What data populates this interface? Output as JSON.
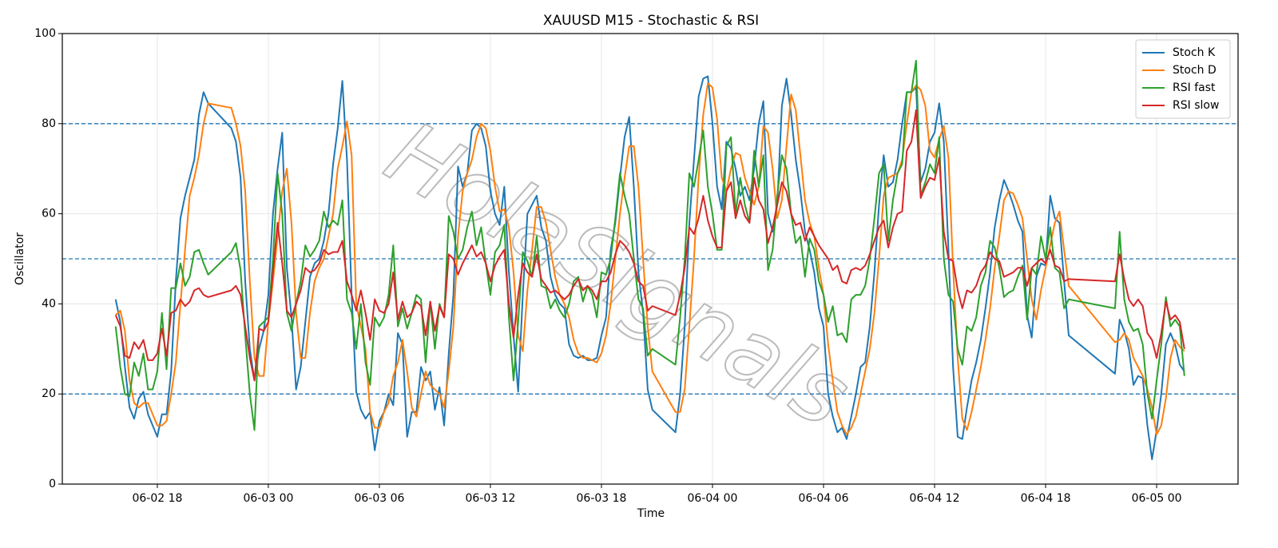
{
  "chart_data": {
    "type": "line",
    "title": "XAUUSD M15 - Stochastic & RSI",
    "xlabel": "Time",
    "ylabel": "Oscillator",
    "watermark": "HolaSignals",
    "grid": true,
    "legend": "upper right",
    "hlines": [
      20,
      50,
      80
    ],
    "hline_color": "#1f77b4",
    "ylim": [
      0,
      100
    ],
    "yticks": [
      0,
      20,
      40,
      60,
      80,
      100
    ],
    "xlim": [
      "06-02 12:52",
      "06-05 04:24"
    ],
    "xticks": [
      {
        "value": "06-02 18:00",
        "label": "06-02 18"
      },
      {
        "value": "06-03 00:00",
        "label": "06-03 00"
      },
      {
        "value": "06-03 06:00",
        "label": "06-03 06"
      },
      {
        "value": "06-03 12:00",
        "label": "06-03 12"
      },
      {
        "value": "06-03 18:00",
        "label": "06-03 18"
      },
      {
        "value": "06-04 00:00",
        "label": "06-04 00"
      },
      {
        "value": "06-04 06:00",
        "label": "06-04 06"
      },
      {
        "value": "06-04 12:00",
        "label": "06-04 12"
      },
      {
        "value": "06-04 18:00",
        "label": "06-04 18"
      },
      {
        "value": "06-05 00:00",
        "label": "06-05 00"
      }
    ],
    "x": [
      "06-02 15:45",
      "06-02 16:00",
      "06-02 16:15",
      "06-02 16:30",
      "06-02 16:45",
      "06-02 17:00",
      "06-02 17:15",
      "06-02 17:30",
      "06-02 17:45",
      "06-02 18:00",
      "06-02 18:15",
      "06-02 18:30",
      "06-02 18:45",
      "06-02 19:00",
      "06-02 19:15",
      "06-02 19:30",
      "06-02 19:45",
      "06-02 20:00",
      "06-02 20:15",
      "06-02 20:30",
      "06-02 20:45",
      "06-02 22:00",
      "06-02 22:15",
      "06-02 22:30",
      "06-02 22:45",
      "06-02 23:00",
      "06-02 23:15",
      "06-02 23:30",
      "06-02 23:45",
      "06-03 00:00",
      "06-03 00:15",
      "06-03 00:30",
      "06-03 00:45",
      "06-03 01:00",
      "06-03 01:15",
      "06-03 01:30",
      "06-03 01:45",
      "06-03 02:00",
      "06-03 02:15",
      "06-03 02:30",
      "06-03 02:45",
      "06-03 03:00",
      "06-03 03:15",
      "06-03 03:30",
      "06-03 03:45",
      "06-03 04:00",
      "06-03 04:15",
      "06-03 04:30",
      "06-03 04:45",
      "06-03 05:00",
      "06-03 05:15",
      "06-03 05:30",
      "06-03 05:45",
      "06-03 06:00",
      "06-03 06:15",
      "06-03 06:30",
      "06-03 06:45",
      "06-03 07:00",
      "06-03 07:15",
      "06-03 07:30",
      "06-03 07:45",
      "06-03 08:00",
      "06-03 08:15",
      "06-03 08:30",
      "06-03 08:45",
      "06-03 09:00",
      "06-03 09:15",
      "06-03 09:30",
      "06-03 09:45",
      "06-03 10:00",
      "06-03 10:15",
      "06-03 10:30",
      "06-03 10:45",
      "06-03 11:00",
      "06-03 11:15",
      "06-03 11:30",
      "06-03 11:45",
      "06-03 12:00",
      "06-03 12:15",
      "06-03 12:30",
      "06-03 12:45",
      "06-03 13:00",
      "06-03 13:15",
      "06-03 13:30",
      "06-03 13:45",
      "06-03 14:00",
      "06-03 14:15",
      "06-03 14:30",
      "06-03 14:45",
      "06-03 15:00",
      "06-03 15:15",
      "06-03 15:30",
      "06-03 15:45",
      "06-03 16:00",
      "06-03 16:15",
      "06-03 16:30",
      "06-03 16:45",
      "06-03 17:00",
      "06-03 17:15",
      "06-03 17:30",
      "06-03 17:45",
      "06-03 18:00",
      "06-03 18:15",
      "06-03 18:30",
      "06-03 18:45",
      "06-03 19:00",
      "06-03 19:15",
      "06-03 19:30",
      "06-03 19:45",
      "06-03 20:00",
      "06-03 20:15",
      "06-03 20:30",
      "06-03 20:45",
      "06-03 22:00",
      "06-03 22:15",
      "06-03 22:30",
      "06-03 22:45",
      "06-03 23:00",
      "06-03 23:15",
      "06-03 23:30",
      "06-03 23:45",
      "06-04 00:00",
      "06-04 00:15",
      "06-04 00:30",
      "06-04 00:45",
      "06-04 01:00",
      "06-04 01:15",
      "06-04 01:30",
      "06-04 01:45",
      "06-04 02:00",
      "06-04 02:15",
      "06-04 02:30",
      "06-04 02:45",
      "06-04 03:00",
      "06-04 03:15",
      "06-04 03:30",
      "06-04 03:45",
      "06-04 04:00",
      "06-04 04:15",
      "06-04 04:30",
      "06-04 04:45",
      "06-04 05:00",
      "06-04 05:15",
      "06-04 05:30",
      "06-04 05:45",
      "06-04 06:00",
      "06-04 06:15",
      "06-04 06:30",
      "06-04 06:45",
      "06-04 07:00",
      "06-04 07:15",
      "06-04 07:30",
      "06-04 07:45",
      "06-04 08:00",
      "06-04 08:15",
      "06-04 08:30",
      "06-04 08:45",
      "06-04 09:00",
      "06-04 09:15",
      "06-04 09:30",
      "06-04 09:45",
      "06-04 10:00",
      "06-04 10:15",
      "06-04 10:30",
      "06-04 10:45",
      "06-04 11:00",
      "06-04 11:15",
      "06-04 11:30",
      "06-04 11:45",
      "06-04 12:00",
      "06-04 12:15",
      "06-04 12:30",
      "06-04 12:45",
      "06-04 13:00",
      "06-04 13:15",
      "06-04 13:30",
      "06-04 13:45",
      "06-04 14:00",
      "06-04 14:15",
      "06-04 14:30",
      "06-04 14:45",
      "06-04 15:00",
      "06-04 15:15",
      "06-04 15:30",
      "06-04 15:45",
      "06-04 16:00",
      "06-04 16:15",
      "06-04 16:30",
      "06-04 16:45",
      "06-04 17:00",
      "06-04 17:15",
      "06-04 17:30",
      "06-04 17:45",
      "06-04 18:00",
      "06-04 18:15",
      "06-04 18:30",
      "06-04 18:45",
      "06-04 19:00",
      "06-04 19:15",
      "06-04 21:45",
      "06-04 22:00",
      "06-04 22:15",
      "06-04 22:30",
      "06-04 22:45",
      "06-04 23:00",
      "06-04 23:15",
      "06-04 23:30",
      "06-04 23:45",
      "06-05 00:00",
      "06-05 00:15",
      "06-05 00:30",
      "06-05 00:45",
      "06-05 01:00",
      "06-05 01:15",
      "06-05 01:30"
    ],
    "series": [
      {
        "name": "Stoch K",
        "color": "#1f77b4",
        "values": [
          41,
          36,
          26,
          17,
          14.5,
          19,
          20.5,
          15.5,
          13,
          10.5,
          15.5,
          15.5,
          25,
          45,
          59,
          64,
          68,
          72,
          82,
          87,
          84.5,
          79,
          76,
          68,
          45,
          30,
          23,
          30,
          34,
          42,
          60,
          70,
          78,
          48,
          37,
          21,
          26,
          36,
          46,
          49,
          50,
          54,
          60,
          71,
          79,
          89.5,
          72,
          42,
          20.5,
          16.5,
          14.5,
          16,
          7.5,
          14,
          16,
          20,
          17.5,
          33.5,
          31,
          10.5,
          16,
          16,
          26,
          23,
          25,
          16.5,
          21.5,
          13,
          29,
          42,
          70.5,
          66,
          69,
          78.5,
          80,
          79,
          75,
          65,
          60,
          57.5,
          66,
          47,
          33,
          20.5,
          42,
          60,
          62,
          64,
          57,
          54,
          46,
          42,
          40,
          39,
          31,
          28.5,
          28,
          28.5,
          27.5,
          27.5,
          28,
          33,
          37,
          52,
          58,
          68,
          77,
          81.5,
          66,
          47,
          38,
          21,
          16.5,
          11.5,
          20,
          35,
          58,
          72,
          86,
          90,
          90.5,
          80,
          66,
          61,
          76,
          74.5,
          70,
          64,
          66,
          63,
          70,
          80,
          85,
          60,
          56,
          62,
          84,
          90,
          82,
          72,
          65,
          56,
          52,
          47,
          39,
          35,
          20,
          15,
          11.5,
          12.5,
          10,
          15,
          20,
          26,
          27,
          35,
          47,
          62,
          73,
          66,
          67,
          72,
          80,
          87,
          87,
          88,
          67,
          70,
          76,
          78,
          84.5,
          76,
          52,
          26,
          10.5,
          10,
          17,
          23,
          27,
          32,
          39,
          47,
          57,
          63,
          67.5,
          65,
          62,
          58.5,
          56,
          37.5,
          32.5,
          46,
          49,
          48.5,
          64,
          59,
          58,
          45,
          33,
          24.5,
          36.5,
          34,
          30,
          22,
          24,
          23.5,
          13,
          5.5,
          12,
          20,
          31,
          33.5,
          31,
          26.5,
          25
        ]
      },
      {
        "name": "Stoch D",
        "color": "#ff7f0e",
        "values": [
          37.5,
          38.5,
          34,
          23,
          18,
          17,
          18,
          18,
          15.5,
          13,
          13,
          14,
          20,
          27,
          40,
          52,
          64,
          68,
          73,
          80,
          84.5,
          83.5,
          80,
          75,
          65,
          45,
          28,
          24,
          24,
          36,
          45,
          55,
          65,
          70,
          58,
          38,
          28,
          28,
          38,
          45,
          48,
          50,
          55,
          60,
          70,
          75,
          80.5,
          73,
          40,
          35,
          30,
          16,
          12.5,
          12.5,
          16,
          18,
          24,
          27,
          32,
          25,
          17,
          15,
          20,
          25,
          22,
          21,
          20,
          17,
          25,
          35,
          55,
          65,
          69,
          72,
          77,
          80,
          79,
          74,
          66,
          60.5,
          61,
          57,
          47,
          33,
          29.5,
          43,
          52,
          61.5,
          61.5,
          58,
          52,
          46,
          42,
          40,
          37,
          32,
          29,
          28,
          28,
          27.5,
          27,
          29,
          33,
          40,
          50,
          60,
          68,
          75,
          75,
          66,
          50,
          35,
          25,
          16,
          16,
          21,
          35,
          50,
          68,
          82,
          89,
          88,
          81,
          68,
          65,
          70,
          73.5,
          73,
          68,
          65,
          62,
          66,
          79.5,
          78,
          70,
          59,
          63,
          75,
          86.5,
          83,
          73,
          63,
          58,
          55,
          48,
          42,
          31,
          23,
          16,
          13,
          11,
          12.5,
          15,
          20,
          25,
          30,
          38,
          50,
          64,
          68,
          68.5,
          69,
          72,
          80,
          87,
          88.5,
          87.5,
          84,
          74,
          72.5,
          76.5,
          79.5,
          72.5,
          48,
          28,
          14.5,
          12,
          16,
          21,
          26,
          32,
          39,
          48,
          55,
          63,
          65,
          64.5,
          62,
          59,
          50,
          41,
          36.5,
          43,
          48,
          53,
          58,
          60.5,
          52,
          44,
          31.5,
          32,
          33.5,
          32,
          28,
          26,
          24,
          21,
          17,
          11,
          13,
          19,
          28,
          32,
          30.5,
          29.5
        ]
      },
      {
        "name": "RSI fast",
        "color": "#2ca02c",
        "values": [
          35,
          26,
          20,
          19.5,
          27,
          24,
          29,
          21,
          21,
          25,
          38,
          25.5,
          43.5,
          43.5,
          49,
          44,
          46,
          51.5,
          52,
          49,
          46.5,
          51.5,
          53.5,
          47.5,
          33,
          20,
          12,
          35,
          36,
          37,
          50,
          69,
          60,
          38,
          34,
          40,
          45,
          53,
          50.5,
          52,
          54,
          60.5,
          57,
          58.5,
          57.5,
          63,
          41,
          38,
          30,
          40,
          27,
          22,
          37,
          35,
          37,
          42,
          53,
          35,
          39,
          34.5,
          38,
          42,
          41,
          27,
          40.5,
          30,
          40,
          37,
          59.5,
          56,
          50,
          52,
          57,
          60.5,
          53,
          57,
          49,
          42,
          51.5,
          53,
          57.5,
          37,
          23,
          36,
          51.5,
          49.5,
          46,
          55,
          44,
          43.5,
          39,
          41,
          38.5,
          37,
          40,
          45,
          46,
          40.5,
          44,
          42,
          37,
          47,
          46.5,
          50,
          59,
          69,
          64,
          60,
          50,
          41,
          39,
          28.5,
          30,
          26.5,
          37,
          50,
          69,
          66,
          72,
          78.5,
          66,
          60,
          52,
          52,
          75,
          77,
          60,
          68,
          62,
          58,
          74,
          66,
          73,
          47.5,
          52,
          64,
          73,
          70,
          60,
          53.5,
          55,
          46,
          54.5,
          52,
          45,
          42,
          36,
          39.5,
          33,
          33.5,
          31.5,
          41,
          42,
          42,
          44,
          50,
          59,
          69,
          71,
          54,
          63,
          69,
          71,
          87,
          87,
          94,
          64,
          67,
          71,
          69,
          77,
          50,
          42,
          40.5,
          30,
          26.5,
          35,
          34,
          37,
          44,
          47,
          54,
          52.5,
          48,
          41.5,
          42.5,
          43,
          46,
          48.5,
          36.5,
          48,
          46.5,
          55,
          50,
          57,
          48,
          47,
          39,
          41,
          39,
          56,
          41,
          36,
          34,
          34.5,
          31,
          20,
          14.5,
          23,
          31,
          41.5,
          35,
          36.5,
          35,
          24
        ]
      },
      {
        "name": "RSI slow",
        "color": "#d62728",
        "values": [
          37.5,
          35,
          28.5,
          28,
          31.5,
          30,
          32,
          27.5,
          27.5,
          29,
          34.5,
          28.5,
          38,
          38.5,
          41,
          39.5,
          40.5,
          43,
          43.5,
          42,
          41.5,
          43,
          44,
          42,
          35,
          28,
          23,
          34.5,
          34,
          36,
          47,
          58,
          49,
          38.5,
          37,
          40,
          43,
          48,
          47,
          47.5,
          49,
          52,
          51,
          51.5,
          51.5,
          54,
          45,
          42,
          38.5,
          43,
          38,
          32,
          41,
          38.5,
          38,
          40,
          47,
          36.5,
          40.5,
          37,
          38,
          40.5,
          39.5,
          33,
          40.5,
          34,
          39.5,
          37,
          51,
          50,
          46.5,
          49,
          51,
          53,
          50.5,
          51.5,
          49,
          45,
          48.5,
          50.5,
          52,
          40,
          32.5,
          42,
          49,
          47,
          46,
          51,
          45.5,
          44,
          42.5,
          43,
          42,
          41,
          42,
          44,
          45.5,
          43,
          44,
          43,
          41,
          45,
          45,
          47,
          51,
          54,
          53,
          51.5,
          49,
          45,
          44,
          38.5,
          39.5,
          37.5,
          42,
          48,
          57,
          55.5,
          59,
          64,
          58.5,
          55,
          52.5,
          52.5,
          65,
          67,
          59,
          63,
          59.5,
          58,
          68,
          63,
          61,
          53.5,
          57,
          62,
          67,
          65,
          60,
          57.5,
          58,
          54,
          57,
          55,
          53,
          51.5,
          50,
          47.5,
          48.5,
          45,
          44.5,
          47.5,
          48,
          47.5,
          48.5,
          51,
          54,
          57,
          58.5,
          52.5,
          57,
          60,
          60.5,
          74,
          76,
          83,
          63.5,
          66,
          68,
          67.5,
          72.5,
          56,
          50,
          49.5,
          43,
          39,
          43,
          42.5,
          44,
          47,
          48.5,
          51.5,
          50,
          49.5,
          46,
          46.5,
          47,
          48,
          48,
          44,
          48,
          49,
          50,
          49,
          52,
          48.5,
          48,
          45,
          45.5,
          45,
          51,
          45.5,
          41,
          39.5,
          41,
          39.5,
          33.5,
          32,
          28,
          33.5,
          40.5,
          36.5,
          37.5,
          36,
          30
        ]
      }
    ]
  }
}
